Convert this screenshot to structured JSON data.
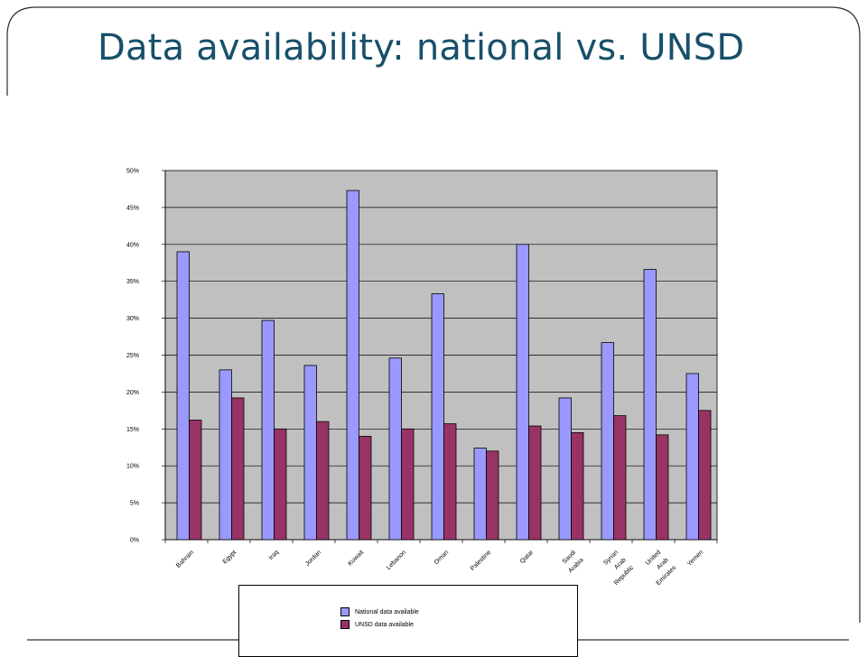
{
  "slide": {
    "title": "Data availability: national vs. UNSD"
  },
  "colors": {
    "title": "#17506a",
    "plot_background": "#c0c0c0",
    "national": "#9999ff",
    "unsd": "#993366",
    "frame": "#2d2d2d"
  },
  "chart_data": {
    "type": "bar",
    "categories": [
      "Bahrain",
      "Egypt",
      "Iraq",
      "Jordan",
      "Kuwait",
      "Lebanon",
      "Oman",
      "Palestine",
      "Qatar",
      "Saudi Arabia",
      "Syrian Arab Republic",
      "United Arab Emirates",
      "Yemen"
    ],
    "category_label_lines": [
      [
        "Bahrain"
      ],
      [
        "Egypt"
      ],
      [
        "Iraq"
      ],
      [
        "Jordan"
      ],
      [
        "Kuwait"
      ],
      [
        "Lebanon"
      ],
      [
        "Oman"
      ],
      [
        "Palestine"
      ],
      [
        "Qatar"
      ],
      [
        "Saudi",
        "Arabia"
      ],
      [
        "Syrian",
        "Arab",
        "Republic"
      ],
      [
        "United",
        "Arab",
        "Emirates"
      ],
      [
        "Yemen"
      ]
    ],
    "series": [
      {
        "name": "National data available",
        "color": "#9999ff",
        "values": [
          39,
          23,
          29.7,
          23.6,
          47.3,
          24.6,
          33.3,
          12.4,
          40,
          19.2,
          26.7,
          36.6,
          22.5
        ]
      },
      {
        "name": "UNSD data available",
        "color": "#993366",
        "values": [
          16.2,
          19.2,
          15,
          16,
          14,
          15,
          15.7,
          12,
          15.4,
          14.5,
          16.8,
          14.2,
          17.5
        ]
      }
    ],
    "ylim": [
      0,
      50
    ],
    "yticks": [
      0,
      5,
      10,
      15,
      20,
      25,
      30,
      35,
      40,
      45,
      50
    ],
    "ytick_labels": [
      "0%",
      "5%",
      "10%",
      "15%",
      "20%",
      "25%",
      "30%",
      "35%",
      "40%",
      "45%",
      "50%"
    ],
    "grid": true,
    "legend_position": "bottom"
  }
}
